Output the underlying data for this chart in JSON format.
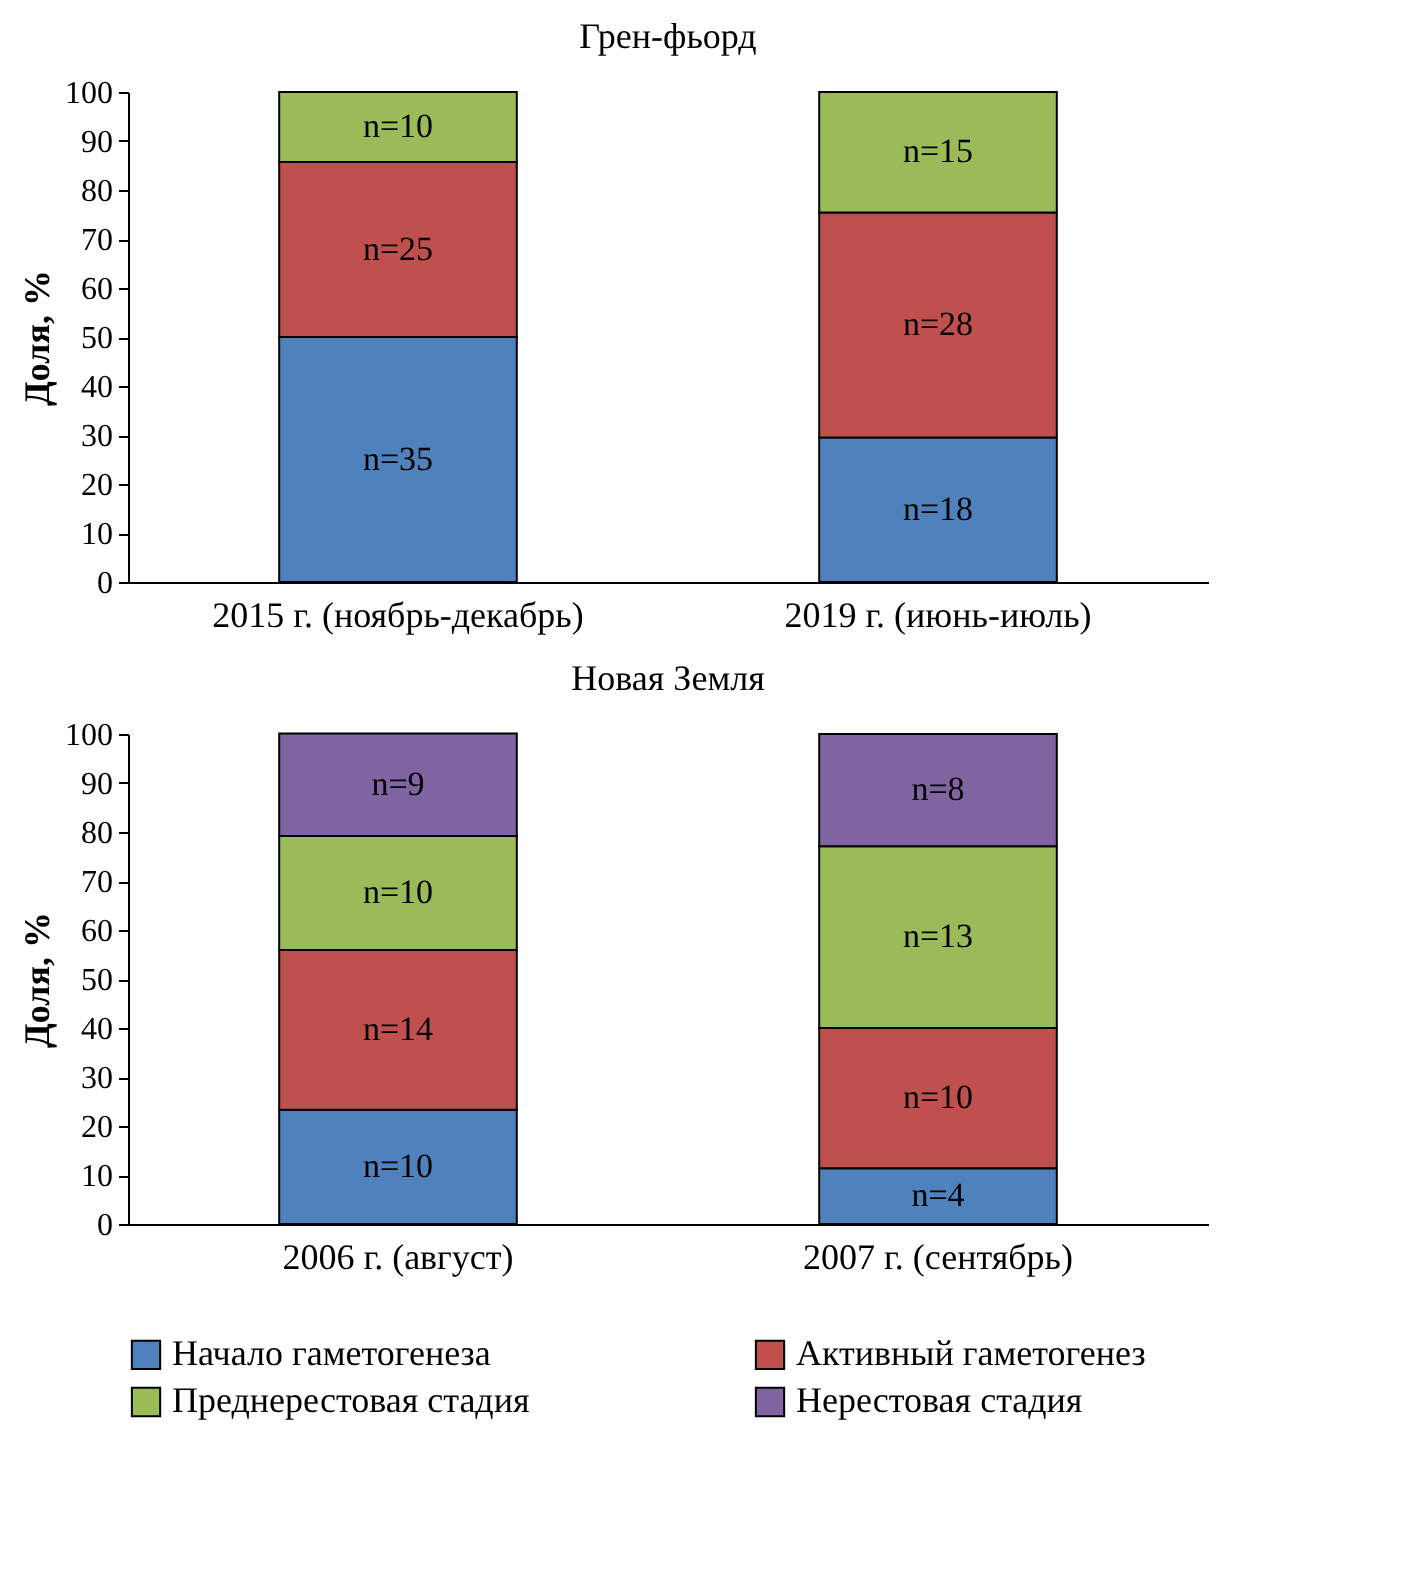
{
  "chart_data": [
    {
      "type": "bar",
      "title": "Грен-фьорд",
      "ylabel": "Доля, %",
      "categories": [
        "2015 г. (ноябрь-декабрь)",
        "2019 г. (июнь-июль)"
      ],
      "stacked": true,
      "ylim": [
        0,
        100
      ],
      "yticks": [
        0,
        10,
        20,
        30,
        40,
        50,
        60,
        70,
        80,
        90,
        100
      ],
      "grid": false,
      "legend": false,
      "series": [
        {
          "color": "#4f81bd",
          "values": [
            50,
            29.5
          ]
        },
        {
          "color": "#c0504d",
          "values": [
            35.7,
            45.9
          ]
        },
        {
          "color": "#9bbb59",
          "values": [
            14.3,
            24.6
          ]
        }
      ],
      "annotations": [
        "n=35",
        "n=25",
        "n=10",
        "n=18",
        "n=28",
        "n=15"
      ]
    },
    {
      "type": "bar",
      "title": "Новая Земля",
      "ylabel": "Доля, %",
      "categories": [
        "2006 г. (август)",
        "2007 г. (сентябрь)"
      ],
      "stacked": true,
      "ylim": [
        0,
        100
      ],
      "yticks": [
        0,
        10,
        20,
        30,
        40,
        50,
        60,
        70,
        80,
        90,
        100
      ],
      "grid": false,
      "legend": "bottom",
      "series": [
        {
          "name": "Начало гаметогенеза",
          "color": "#4f81bd",
          "values": [
            23.3,
            11.4
          ]
        },
        {
          "name": "Активный гаметогенез",
          "color": "#c0504d",
          "values": [
            32.6,
            28.6
          ]
        },
        {
          "name": "Преднерестовая стадия",
          "color": "#9bbb59",
          "values": [
            23.3,
            37.1
          ]
        },
        {
          "name": "Нерестовая стадия",
          "color": "#8064a2",
          "values": [
            20.9,
            22.9
          ]
        }
      ],
      "annotations": [
        "n=10",
        "n=14",
        "n=10",
        "n=9",
        "n=4",
        "n=10",
        "n=13",
        "n=8"
      ]
    }
  ]
}
